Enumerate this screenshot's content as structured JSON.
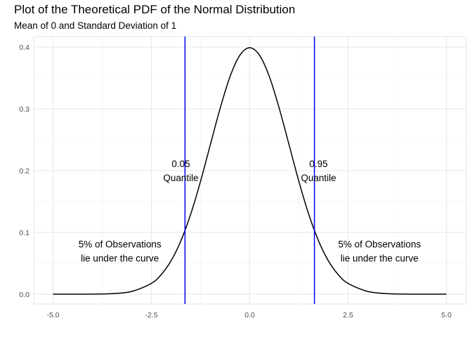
{
  "chart_data": {
    "type": "line",
    "title": "Plot of the Theoretical PDF of the Normal Distribution",
    "subtitle": "Mean of 0 and Standard Deviation of 1",
    "xlabel": "",
    "ylabel": "",
    "xlim": [
      -5.0,
      5.0
    ],
    "ylim": [
      0.0,
      0.4
    ],
    "x_ticks": [
      -5.0,
      -2.5,
      0.0,
      2.5,
      5.0
    ],
    "x_tick_labels": [
      "-5.0",
      "-2.5",
      "0.0",
      "2.5",
      "5.0"
    ],
    "y_ticks": [
      0.0,
      0.1,
      0.2,
      0.3,
      0.4
    ],
    "y_tick_labels": [
      "0.0",
      "0.1",
      "0.2",
      "0.3",
      "0.4"
    ],
    "grid": true,
    "series": [
      {
        "x": [
          -5.0,
          -4.5,
          -4.0,
          -3.5,
          -3.0,
          -2.5,
          -2.25,
          -2.0,
          -1.75,
          -1.5,
          -1.25,
          -1.0,
          -0.75,
          -0.5,
          -0.25,
          0.0,
          0.25,
          0.5,
          0.75,
          1.0,
          1.25,
          1.5,
          1.75,
          2.0,
          2.25,
          2.5,
          3.0,
          3.5,
          4.0,
          4.5,
          5.0
        ],
        "y": [
          0.0,
          0.0,
          0.0001,
          0.0009,
          0.0044,
          0.0175,
          0.0317,
          0.054,
          0.0863,
          0.1295,
          0.1826,
          0.242,
          0.3011,
          0.3521,
          0.3867,
          0.3989,
          0.3867,
          0.3521,
          0.3011,
          0.242,
          0.1826,
          0.1295,
          0.0863,
          0.054,
          0.0317,
          0.0175,
          0.0044,
          0.0009,
          0.0001,
          0.0,
          0.0
        ],
        "color": "#000000"
      }
    ],
    "vlines": [
      {
        "x": -1.645,
        "color": "#0000ff"
      },
      {
        "x": 1.645,
        "color": "#0000ff"
      }
    ],
    "annotations": [
      {
        "lines": [
          "0.05",
          "Quantile"
        ],
        "x": -1.75,
        "y": 0.2
      },
      {
        "lines": [
          "0.95",
          "Quantile"
        ],
        "x": 1.75,
        "y": 0.2
      },
      {
        "lines": [
          "5% of Observations",
          "lie under the curve"
        ],
        "x": -3.3,
        "y": 0.07
      },
      {
        "lines": [
          "5% of Observations",
          "lie under the curve"
        ],
        "x": 3.3,
        "y": 0.07
      }
    ]
  }
}
